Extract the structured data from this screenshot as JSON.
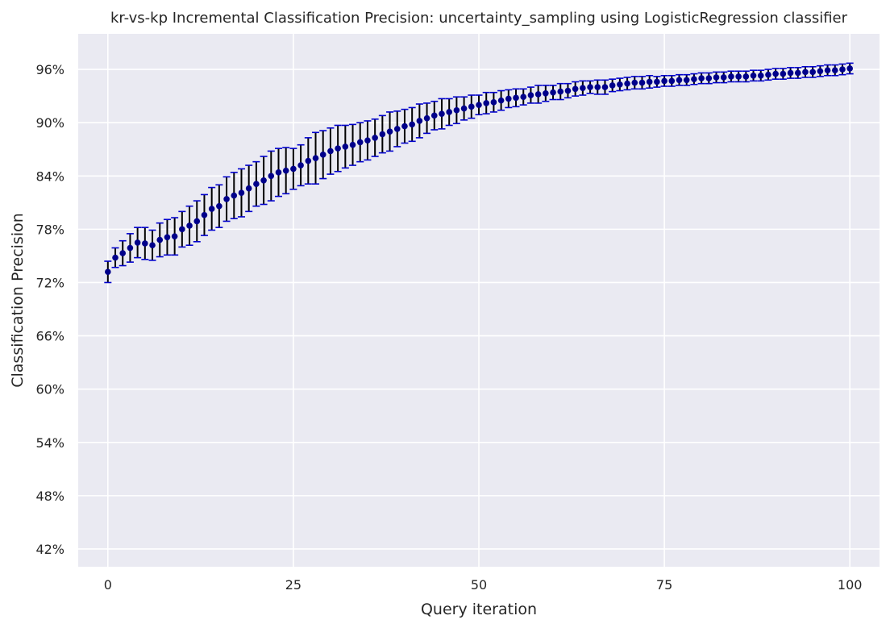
{
  "chart_data": {
    "type": "scatter",
    "title": "kr-vs-kp Incremental Classification Precision: uncertainty_sampling using LogisticRegression classifier",
    "xlabel": "Query iteration",
    "ylabel": "Classification Precision",
    "xlim": [
      -4,
      104
    ],
    "ylim": [
      40,
      100
    ],
    "x_ticks": [
      0,
      25,
      50,
      75,
      100
    ],
    "y_ticks": [
      42,
      48,
      54,
      60,
      66,
      72,
      78,
      84,
      90,
      96
    ],
    "y_tick_format": "percent",
    "grid": true,
    "background": "#eaeaf2",
    "marker_color": "#00008b",
    "errorbar_color": "#000000",
    "cap_color": "#0000cd",
    "series": [
      {
        "x": [
          0,
          1,
          2,
          3,
          4,
          5,
          6,
          7,
          8,
          9,
          10,
          11,
          12,
          13,
          14,
          15,
          16,
          17,
          18,
          19,
          20,
          21,
          22,
          23,
          24,
          25,
          26,
          27,
          28,
          29,
          30,
          31,
          32,
          33,
          34,
          35,
          36,
          37,
          38,
          39,
          40,
          41,
          42,
          43,
          44,
          45,
          46,
          47,
          48,
          49,
          50,
          51,
          52,
          53,
          54,
          55,
          56,
          57,
          58,
          59,
          60,
          61,
          62,
          63,
          64,
          65,
          66,
          67,
          68,
          69,
          70,
          71,
          72,
          73,
          74,
          75,
          76,
          77,
          78,
          79,
          80,
          81,
          82,
          83,
          84,
          85,
          86,
          87,
          88,
          89,
          90,
          91,
          92,
          93,
          94,
          95,
          96,
          97,
          98,
          99,
          100
        ],
        "y": [
          73.2,
          74.8,
          75.3,
          75.9,
          76.5,
          76.4,
          76.2,
          76.8,
          77.1,
          77.2,
          78.0,
          78.4,
          78.9,
          79.6,
          80.3,
          80.6,
          81.4,
          81.8,
          82.1,
          82.6,
          83.1,
          83.5,
          84.0,
          84.4,
          84.6,
          84.8,
          85.2,
          85.7,
          86.0,
          86.4,
          86.8,
          87.1,
          87.3,
          87.5,
          87.8,
          88.0,
          88.3,
          88.7,
          89.0,
          89.3,
          89.6,
          89.8,
          90.2,
          90.5,
          90.8,
          91.0,
          91.2,
          91.4,
          91.6,
          91.8,
          92.0,
          92.2,
          92.3,
          92.5,
          92.7,
          92.8,
          92.9,
          93.1,
          93.2,
          93.3,
          93.4,
          93.5,
          93.6,
          93.8,
          93.9,
          94.0,
          94.0,
          94.0,
          94.2,
          94.3,
          94.4,
          94.5,
          94.5,
          94.6,
          94.6,
          94.7,
          94.7,
          94.8,
          94.8,
          94.9,
          95.0,
          95.0,
          95.1,
          95.1,
          95.2,
          95.2,
          95.2,
          95.3,
          95.3,
          95.4,
          95.5,
          95.5,
          95.6,
          95.6,
          95.7,
          95.7,
          95.8,
          95.9,
          95.9,
          96.0,
          96.1
        ],
        "err": [
          1.2,
          1.1,
          1.4,
          1.6,
          1.7,
          1.8,
          1.7,
          1.9,
          2.0,
          2.1,
          2.0,
          2.2,
          2.3,
          2.3,
          2.4,
          2.4,
          2.5,
          2.6,
          2.7,
          2.6,
          2.5,
          2.7,
          2.8,
          2.7,
          2.6,
          2.3,
          2.3,
          2.6,
          2.9,
          2.7,
          2.6,
          2.6,
          2.4,
          2.3,
          2.2,
          2.2,
          2.1,
          2.1,
          2.2,
          2.0,
          1.9,
          1.9,
          1.9,
          1.7,
          1.6,
          1.7,
          1.5,
          1.5,
          1.3,
          1.3,
          1.1,
          1.2,
          1.1,
          1.1,
          1.0,
          1.0,
          0.9,
          0.9,
          1.0,
          0.9,
          0.8,
          0.9,
          0.8,
          0.8,
          0.8,
          0.7,
          0.8,
          0.8,
          0.7,
          0.7,
          0.7,
          0.7,
          0.7,
          0.7,
          0.6,
          0.6,
          0.6,
          0.6,
          0.6,
          0.6,
          0.6,
          0.6,
          0.6,
          0.6,
          0.6,
          0.6,
          0.6,
          0.6,
          0.6,
          0.6,
          0.6,
          0.6,
          0.6,
          0.6,
          0.6,
          0.6,
          0.6,
          0.6,
          0.6,
          0.6,
          0.6
        ]
      }
    ]
  }
}
